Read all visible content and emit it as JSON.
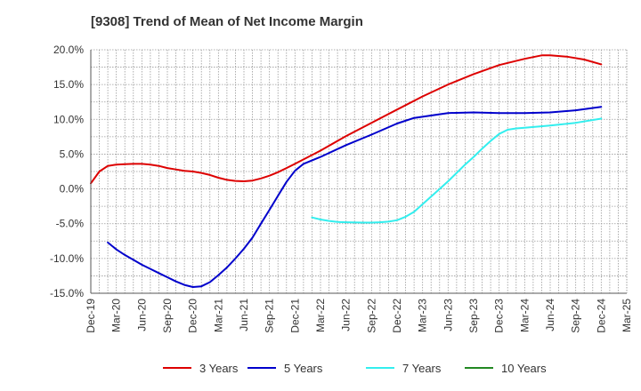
{
  "chart_data": {
    "type": "line",
    "title": "[9308]  Trend of Mean of Net Income Margin",
    "xlabel": "",
    "ylabel": "",
    "ylim": [
      -15,
      20
    ],
    "y_ticks": [
      -15,
      -10,
      -5,
      0,
      5,
      10,
      15,
      20
    ],
    "y_tick_labels": [
      "-15.0%",
      "-10.0%",
      "-5.0%",
      "0.0%",
      "5.0%",
      "10.0%",
      "15.0%",
      "20.0%"
    ],
    "x_tick_labels": [
      "Dec-19",
      "Mar-20",
      "Jun-20",
      "Sep-20",
      "Dec-20",
      "Mar-21",
      "Jun-21",
      "Sep-21",
      "Dec-21",
      "Mar-22",
      "Jun-22",
      "Sep-22",
      "Dec-22",
      "Mar-23",
      "Jun-23",
      "Sep-23",
      "Dec-23",
      "Mar-24",
      "Jun-24",
      "Sep-24",
      "Dec-24",
      "Mar-25"
    ],
    "grid": true,
    "legend_position": "bottom",
    "series": [
      {
        "name": "3 Years",
        "color": "#dd0000",
        "points": [
          [
            "Dec-19",
            0.8
          ],
          [
            "Jan-20",
            2.5
          ],
          [
            "Feb-20",
            3.3
          ],
          [
            "Mar-20",
            3.5
          ],
          [
            "Apr-20",
            3.55
          ],
          [
            "May-20",
            3.6
          ],
          [
            "Jun-20",
            3.6
          ],
          [
            "Jul-20",
            3.5
          ],
          [
            "Aug-20",
            3.3
          ],
          [
            "Sep-20",
            3.0
          ],
          [
            "Oct-20",
            2.8
          ],
          [
            "Nov-20",
            2.6
          ],
          [
            "Dec-20",
            2.5
          ],
          [
            "Jan-21",
            2.3
          ],
          [
            "Feb-21",
            2.0
          ],
          [
            "Mar-21",
            1.6
          ],
          [
            "Apr-21",
            1.3
          ],
          [
            "May-21",
            1.15
          ],
          [
            "Jun-21",
            1.1
          ],
          [
            "Jul-21",
            1.2
          ],
          [
            "Aug-21",
            1.5
          ],
          [
            "Sep-21",
            1.9
          ],
          [
            "Oct-21",
            2.4
          ],
          [
            "Nov-21",
            3.0
          ],
          [
            "Dec-21",
            3.6
          ],
          [
            "Mar-22",
            5.5
          ],
          [
            "Jun-22",
            7.6
          ],
          [
            "Sep-22",
            9.5
          ],
          [
            "Dec-22",
            11.4
          ],
          [
            "Mar-23",
            13.3
          ],
          [
            "Jun-23",
            15.0
          ],
          [
            "Sep-23",
            16.5
          ],
          [
            "Dec-23",
            17.8
          ],
          [
            "Mar-24",
            18.7
          ],
          [
            "May-24",
            19.2
          ],
          [
            "Jun-24",
            19.2
          ],
          [
            "Aug-24",
            19.0
          ],
          [
            "Oct-24",
            18.6
          ],
          [
            "Dec-24",
            17.9
          ]
        ]
      },
      {
        "name": "5 Years",
        "color": "#0000cc",
        "points": [
          [
            "Feb-20",
            -7.7
          ],
          [
            "Mar-20",
            -8.7
          ],
          [
            "Apr-20",
            -9.5
          ],
          [
            "May-20",
            -10.2
          ],
          [
            "Jun-20",
            -10.9
          ],
          [
            "Jul-20",
            -11.5
          ],
          [
            "Aug-20",
            -12.1
          ],
          [
            "Sep-20",
            -12.7
          ],
          [
            "Oct-20",
            -13.3
          ],
          [
            "Nov-20",
            -13.8
          ],
          [
            "Dec-20",
            -14.1
          ],
          [
            "Jan-21",
            -14.0
          ],
          [
            "Feb-21",
            -13.4
          ],
          [
            "Mar-21",
            -12.4
          ],
          [
            "Apr-21",
            -11.3
          ],
          [
            "May-21",
            -10.0
          ],
          [
            "Jun-21",
            -8.6
          ],
          [
            "Jul-21",
            -7.0
          ],
          [
            "Aug-21",
            -5.0
          ],
          [
            "Sep-21",
            -3.0
          ],
          [
            "Oct-21",
            -1.0
          ],
          [
            "Nov-21",
            1.0
          ],
          [
            "Dec-21",
            2.6
          ],
          [
            "Jan-22",
            3.6
          ],
          [
            "Mar-22",
            4.6
          ],
          [
            "Jun-22",
            6.3
          ],
          [
            "Sep-22",
            7.8
          ],
          [
            "Dec-22",
            9.4
          ],
          [
            "Feb-23",
            10.2
          ],
          [
            "Jun-23",
            10.9
          ],
          [
            "Sep-23",
            11.0
          ],
          [
            "Dec-23",
            10.9
          ],
          [
            "Mar-24",
            10.9
          ],
          [
            "Jun-24",
            11.0
          ],
          [
            "Sep-24",
            11.3
          ],
          [
            "Dec-24",
            11.8
          ]
        ]
      },
      {
        "name": "7 Years",
        "color": "#33eeee",
        "points": [
          [
            "Feb-22",
            -4.1
          ],
          [
            "Mar-22",
            -4.4
          ],
          [
            "Apr-22",
            -4.6
          ],
          [
            "May-22",
            -4.75
          ],
          [
            "Jun-22",
            -4.8
          ],
          [
            "Aug-22",
            -4.85
          ],
          [
            "Sep-22",
            -4.85
          ],
          [
            "Oct-22",
            -4.8
          ],
          [
            "Nov-22",
            -4.7
          ],
          [
            "Dec-22",
            -4.5
          ],
          [
            "Jan-23",
            -4.0
          ],
          [
            "Feb-23",
            -3.3
          ],
          [
            "Mar-23",
            -2.2
          ],
          [
            "Apr-23",
            -1.1
          ],
          [
            "May-23",
            0.0
          ],
          [
            "Jun-23",
            1.1
          ],
          [
            "Jul-23",
            2.3
          ],
          [
            "Aug-23",
            3.5
          ],
          [
            "Sep-23",
            4.6
          ],
          [
            "Oct-23",
            5.8
          ],
          [
            "Nov-23",
            6.9
          ],
          [
            "Dec-23",
            7.9
          ],
          [
            "Jan-24",
            8.5
          ],
          [
            "Feb-24",
            8.7
          ],
          [
            "Mar-24",
            8.8
          ],
          [
            "Jun-24",
            9.1
          ],
          [
            "Sep-24",
            9.5
          ],
          [
            "Dec-24",
            10.1
          ]
        ]
      },
      {
        "name": "10 Years",
        "color": "#228822",
        "points": []
      }
    ]
  }
}
